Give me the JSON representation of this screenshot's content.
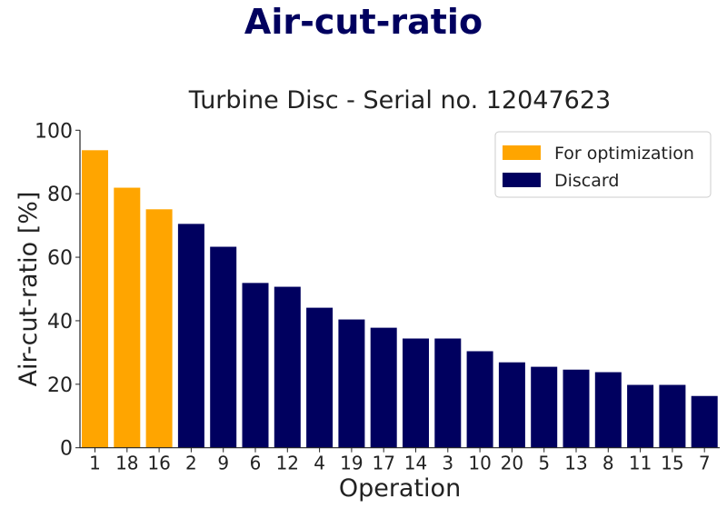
{
  "suptitle": "Air-cut-ratio",
  "chart_data": {
    "type": "bar",
    "title": "Turbine Disc - Serial no. 12047623",
    "xlabel": "Operation",
    "ylabel": "Air-cut-ratio [%]",
    "ylim": [
      0,
      100
    ],
    "yticks": [
      0,
      20,
      40,
      60,
      80,
      100
    ],
    "grid": false,
    "legend_placement": "top-right",
    "categories": [
      "1",
      "18",
      "16",
      "2",
      "9",
      "6",
      "12",
      "4",
      "19",
      "17",
      "14",
      "3",
      "10",
      "20",
      "5",
      "13",
      "8",
      "11",
      "15",
      "7"
    ],
    "values": [
      93.7,
      81.9,
      75.1,
      70.5,
      63.3,
      51.9,
      50.7,
      44.1,
      40.4,
      37.8,
      34.4,
      34.4,
      30.4,
      26.9,
      25.5,
      24.6,
      23.8,
      19.8,
      19.8,
      16.3
    ],
    "groups": [
      "For optimization",
      "For optimization",
      "For optimization",
      "Discard",
      "Discard",
      "Discard",
      "Discard",
      "Discard",
      "Discard",
      "Discard",
      "Discard",
      "Discard",
      "Discard",
      "Discard",
      "Discard",
      "Discard",
      "Discard",
      "Discard",
      "Discard",
      "Discard"
    ],
    "legend": [
      {
        "name": "For optimization",
        "color": "#ffa500"
      },
      {
        "name": "Discard",
        "color": "#00005f"
      }
    ]
  }
}
